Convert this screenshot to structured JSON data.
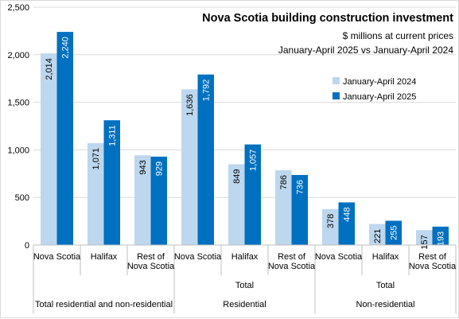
{
  "chart_data": {
    "type": "bar",
    "title": "Nova Scotia building construction investment",
    "subtitle_lines": [
      "$ millions at current prices",
      "January-April 2025 vs January-April 2024"
    ],
    "ylim": [
      0,
      2500
    ],
    "yticks": [
      "0",
      "500",
      "1,000",
      "1,500",
      "2,000",
      "2,500"
    ],
    "ytick_values": [
      0,
      500,
      1000,
      1500,
      2000,
      2500
    ],
    "grid": true,
    "legend_placement": "right",
    "categories": [
      "Nova Scotia",
      "Halifax",
      "Rest of Nova Scotia",
      "Nova Scotia",
      "Halifax",
      "Rest of Nova Scotia",
      "Nova Scotia",
      "Halifax",
      "Rest of Nova Scotia"
    ],
    "category_lines": [
      [
        "Nova Scotia"
      ],
      [
        "Halifax"
      ],
      [
        "Rest of",
        "Nova Scotia"
      ],
      [
        "Nova Scotia"
      ],
      [
        "Halifax"
      ],
      [
        "Rest of",
        "Nova Scotia"
      ],
      [
        "Nova Scotia"
      ],
      [
        "Halifax"
      ],
      [
        "Rest of",
        "Nova Scotia"
      ]
    ],
    "group_labels": [
      {
        "lines": [
          "Total residential and non-residential"
        ]
      },
      {
        "lines": [
          "Total",
          "Residential"
        ]
      },
      {
        "lines": [
          "Total",
          "Non-residential"
        ]
      }
    ],
    "series": [
      {
        "name": "January-April 2024",
        "color": "#bdd7ee",
        "values": [
          2014,
          1071,
          943,
          1636,
          849,
          786,
          378,
          221,
          157
        ],
        "labels": [
          "2,014",
          "1,071",
          "943",
          "1,636",
          "849",
          "786",
          "378",
          "221",
          "157"
        ]
      },
      {
        "name": "January-April 2025",
        "color": "#0070c0",
        "values": [
          2240,
          1311,
          929,
          1792,
          1057,
          736,
          448,
          255,
          193
        ],
        "labels": [
          "2,240",
          "1,311",
          "929",
          "1,792",
          "1,057",
          "736",
          "448",
          "255",
          "193"
        ]
      }
    ]
  }
}
